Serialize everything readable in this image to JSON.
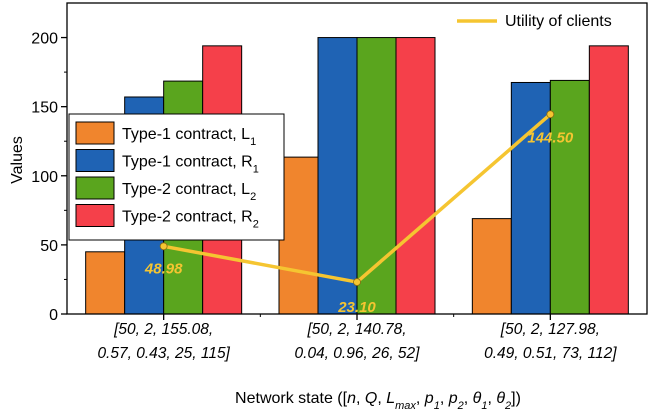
{
  "chart_data": {
    "type": "bar",
    "ylabel": "Values",
    "xlabel_parts": [
      {
        "t": "Network state (["
      },
      {
        "t": "n",
        "i": true
      },
      {
        "t": ", "
      },
      {
        "t": "Q",
        "i": true
      },
      {
        "t": ", "
      },
      {
        "t": "L",
        "i": true
      },
      {
        "t": "max",
        "i": true,
        "sub": true
      },
      {
        "t": ", "
      },
      {
        "t": "p",
        "i": true
      },
      {
        "t": "1",
        "i": true,
        "sub": true
      },
      {
        "t": ", "
      },
      {
        "t": "p",
        "i": true
      },
      {
        "t": "2",
        "i": true,
        "sub": true
      },
      {
        "t": ", "
      },
      {
        "t": "θ",
        "i": true
      },
      {
        "t": "1",
        "i": true,
        "sub": true
      },
      {
        "t": ", "
      },
      {
        "t": "θ",
        "i": true
      },
      {
        "t": "2",
        "i": true,
        "sub": true
      },
      {
        "t": "])"
      }
    ],
    "categories": [
      [
        "[50, 2, 155.08,",
        "0.57, 0.43, 25, 115]"
      ],
      [
        "[50, 2, 140.78,",
        "0.04, 0.96, 26, 52]"
      ],
      [
        "[50, 2, 127.98,",
        "0.49, 0.51, 73, 112]"
      ]
    ],
    "ylim": [
      0,
      225
    ],
    "yticks": [
      0,
      50,
      100,
      150,
      200
    ],
    "series": [
      {
        "name": "Type-1 contract, L",
        "sub": "1",
        "color": "#f0852d",
        "values": [
          45,
          113.5,
          69
        ]
      },
      {
        "name": "Type-1 contract, R",
        "sub": "1",
        "color": "#1f63b4",
        "values": [
          157,
          200,
          167.5
        ]
      },
      {
        "name": "Type-2 contract, L",
        "sub": "2",
        "color": "#5aa51e",
        "values": [
          168.5,
          200,
          169
        ]
      },
      {
        "name": "Type-2 contract, R",
        "sub": "2",
        "color": "#f5404a",
        "values": [
          194,
          200,
          194
        ]
      }
    ],
    "line": {
      "name": "Utility of clients",
      "color": "#f5c531",
      "values": [
        48.98,
        23.1,
        144.5
      ],
      "labels": [
        "48.98",
        "23.10",
        "144.50"
      ]
    },
    "legend_position": "left",
    "grid": false
  }
}
